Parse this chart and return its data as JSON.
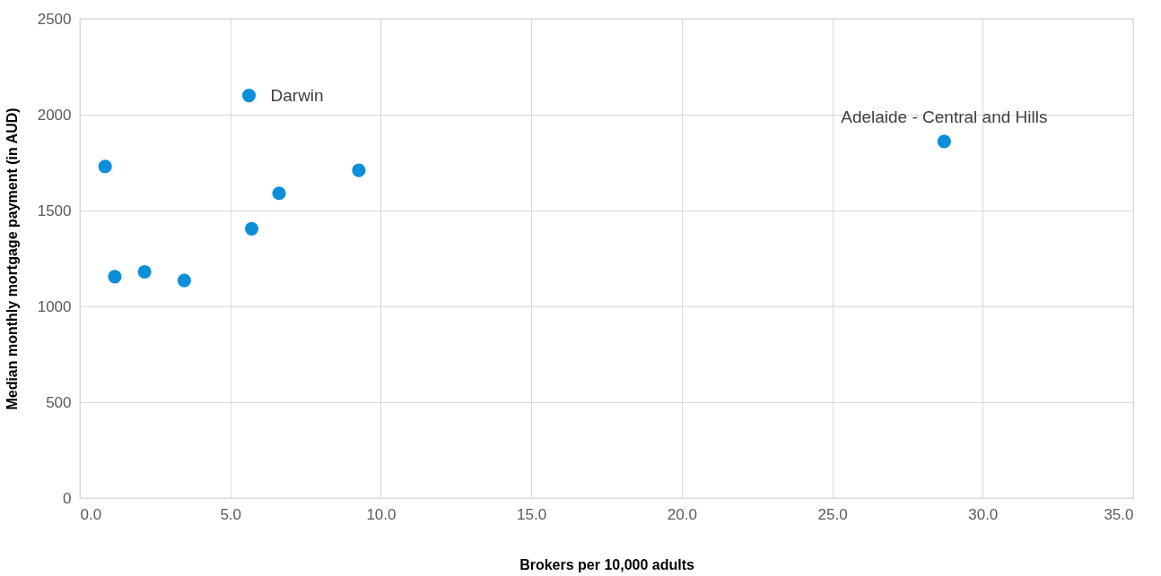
{
  "chart_data": {
    "type": "scatter",
    "xlabel": "Brokers per 10,000 adults",
    "ylabel": "Median monthly mortgage payment (in AUD)",
    "x": [
      0.84,
      1.16,
      2.15,
      3.47,
      5.62,
      5.71,
      6.62,
      9.27,
      28.72
    ],
    "series": [
      {
        "color": "#0a8fd8",
        "values": [
          1730,
          1155,
          1180,
          1135,
          2100,
          1405,
          1590,
          1710,
          1860
        ]
      }
    ],
    "xlim": [
      0,
      35
    ],
    "ylim": [
      0,
      2500
    ],
    "xticks": [
      {
        "value": 0,
        "label": "0.0"
      },
      {
        "value": 5,
        "label": "5.0"
      },
      {
        "value": 10,
        "label": "10.0"
      },
      {
        "value": 15,
        "label": "15.0"
      },
      {
        "value": 20,
        "label": "20.0"
      },
      {
        "value": 25,
        "label": "25.0"
      },
      {
        "value": 30,
        "label": "30.0"
      },
      {
        "value": 35,
        "label": "35.0"
      }
    ],
    "yticks": [
      0,
      500,
      1000,
      1500,
      2000,
      2500
    ],
    "annotations": [
      {
        "text": "Darwin",
        "x": 5.62,
        "y": 2100
      },
      {
        "text": "Adelaide - Central and Hills",
        "x": 28.72,
        "y": 1860
      }
    ],
    "grid": true,
    "marker": "circle"
  }
}
